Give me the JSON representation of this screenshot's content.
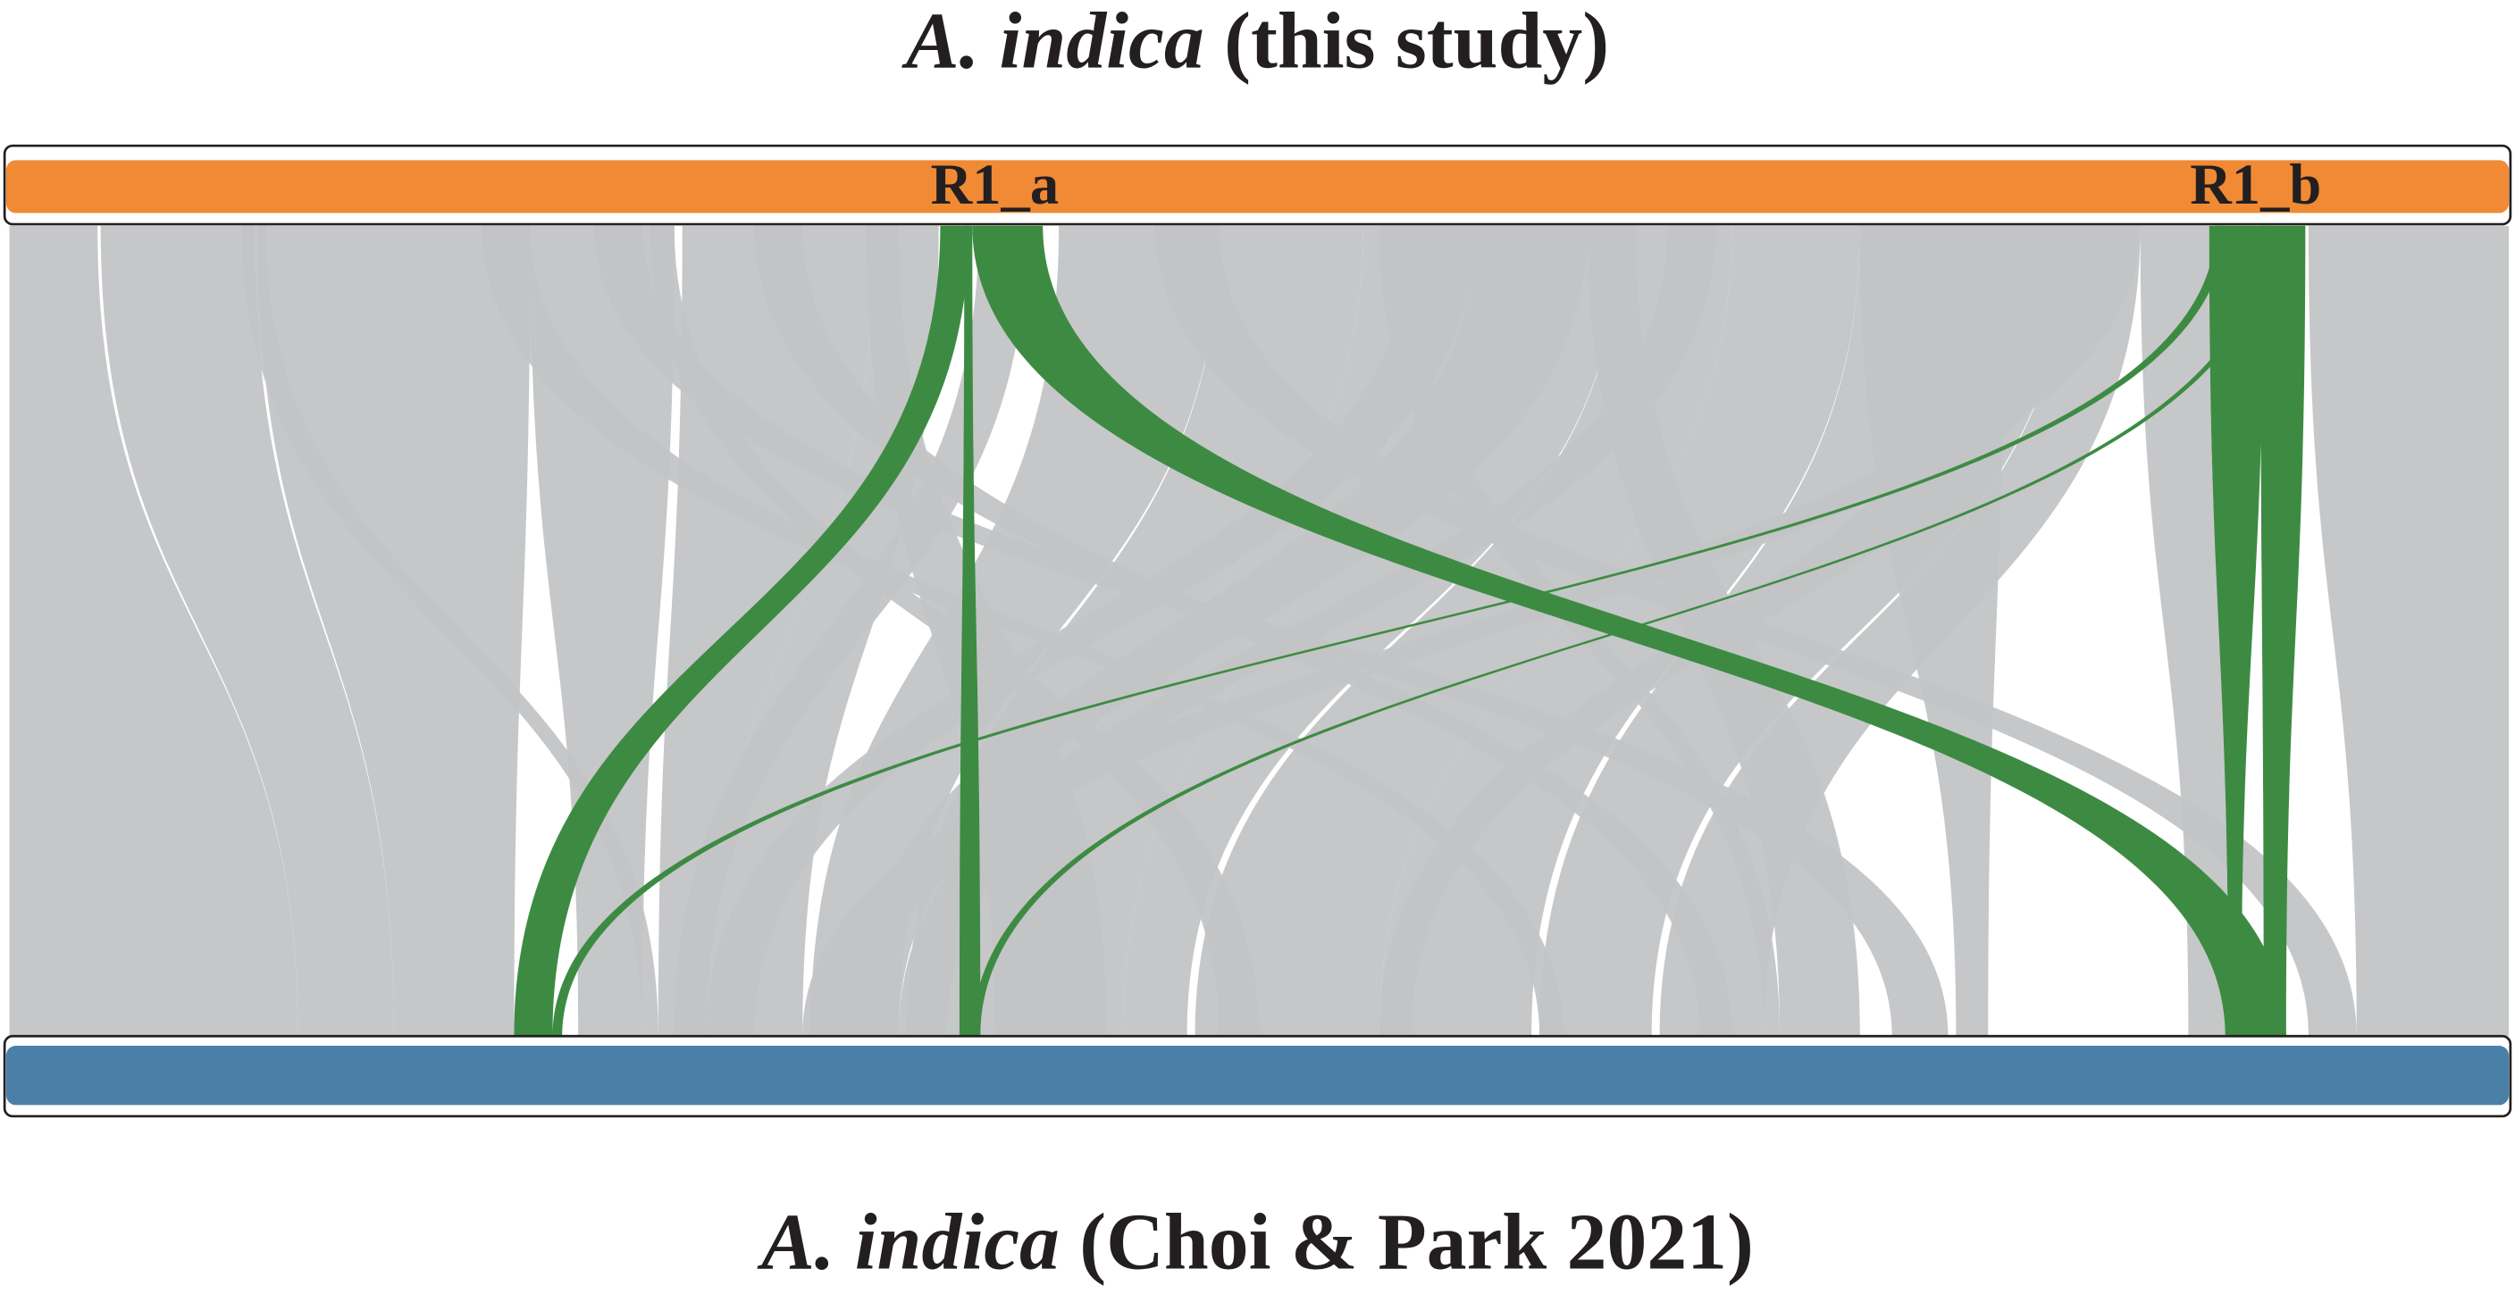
{
  "top_genome": {
    "species": "A. indica",
    "note": "(this study)"
  },
  "bottom_genome": {
    "species": "A. indica",
    "note": "(Choi & Park 2021)"
  },
  "markers": [
    "R1_a",
    "R1_b"
  ]
}
